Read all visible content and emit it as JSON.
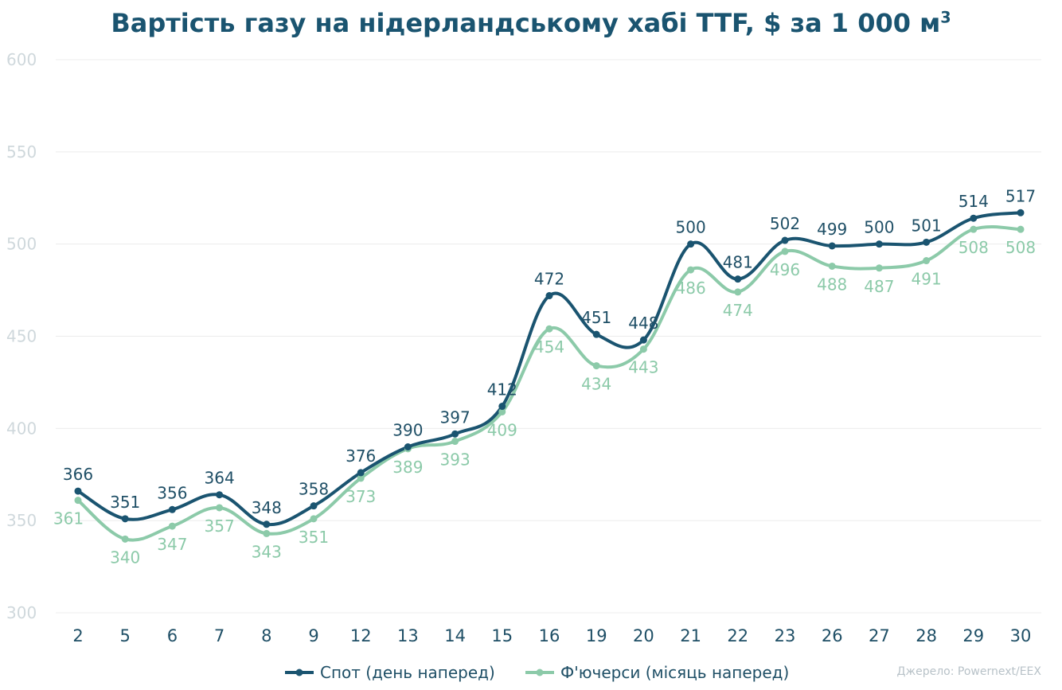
{
  "chart_data": {
    "type": "line",
    "title": "Вартість газу на нідерландському хабі TTF, $ за 1 000 м",
    "title_superscript": "3",
    "xlabel": "",
    "ylabel": "",
    "categories": [
      "2",
      "5",
      "6",
      "7",
      "8",
      "9",
      "12",
      "13",
      "14",
      "15",
      "16",
      "19",
      "20",
      "21",
      "22",
      "23",
      "26",
      "27",
      "28",
      "29",
      "30"
    ],
    "ylim": [
      300,
      600
    ],
    "yticks": [
      300,
      350,
      400,
      450,
      500,
      550,
      600
    ],
    "grid": true,
    "legend_position": "bottom",
    "series": [
      {
        "name": "Спот (день наперед)",
        "color": "#1a5470",
        "values": [
          366,
          351,
          356,
          364,
          348,
          358,
          376,
          390,
          397,
          412,
          472,
          451,
          448,
          500,
          481,
          502,
          499,
          500,
          501,
          514,
          517
        ]
      },
      {
        "name": "Ф'ючерси (місяць наперед)",
        "color": "#8ccaa9",
        "values": [
          361,
          340,
          347,
          357,
          343,
          351,
          373,
          389,
          393,
          409,
          454,
          434,
          443,
          486,
          474,
          496,
          488,
          487,
          491,
          508,
          508
        ]
      }
    ],
    "source": "Джерело: Powernext/EEX"
  }
}
